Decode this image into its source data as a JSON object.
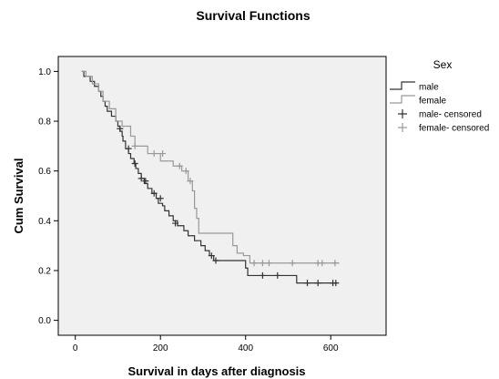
{
  "chart_data": {
    "type": "line",
    "title": "Survival Functions",
    "xlabel": "Survival in days after diagnosis",
    "ylabel": "Cum Survival",
    "xlim": [
      -40,
      730
    ],
    "ylim": [
      -0.06,
      1.06
    ],
    "x_ticks": [
      "0",
      "200",
      "400",
      "600"
    ],
    "x_tick_values": [
      0,
      200,
      400,
      600
    ],
    "y_ticks": [
      "0.0",
      "0.2",
      "0.4",
      "0.6",
      "0.8",
      "1.0"
    ],
    "y_tick_values": [
      0,
      0.2,
      0.4,
      0.6,
      0.8,
      1.0
    ],
    "grid": false,
    "legend": {
      "title": "Sex",
      "placement": "right",
      "entries": [
        "male",
        "female",
        "male- censored",
        "female- censored"
      ]
    },
    "series": [
      {
        "name": "male",
        "color": "#333333",
        "points": [
          [
            15,
            1.0
          ],
          [
            20,
            0.98
          ],
          [
            35,
            0.96
          ],
          [
            45,
            0.94
          ],
          [
            55,
            0.92
          ],
          [
            60,
            0.9
          ],
          [
            65,
            0.88
          ],
          [
            70,
            0.86
          ],
          [
            75,
            0.84
          ],
          [
            85,
            0.82
          ],
          [
            95,
            0.8
          ],
          [
            100,
            0.78
          ],
          [
            105,
            0.76
          ],
          [
            110,
            0.74
          ],
          [
            112,
            0.72
          ],
          [
            118,
            0.69
          ],
          [
            125,
            0.67
          ],
          [
            130,
            0.65
          ],
          [
            138,
            0.63
          ],
          [
            142,
            0.61
          ],
          [
            148,
            0.59
          ],
          [
            155,
            0.57
          ],
          [
            162,
            0.55
          ],
          [
            170,
            0.53
          ],
          [
            180,
            0.51
          ],
          [
            190,
            0.49
          ],
          [
            195,
            0.47
          ],
          [
            205,
            0.46
          ],
          [
            210,
            0.44
          ],
          [
            220,
            0.42
          ],
          [
            230,
            0.4
          ],
          [
            240,
            0.38
          ],
          [
            255,
            0.36
          ],
          [
            265,
            0.34
          ],
          [
            280,
            0.32
          ],
          [
            295,
            0.3
          ],
          [
            305,
            0.28
          ],
          [
            315,
            0.26
          ],
          [
            325,
            0.24
          ],
          [
            400,
            0.21
          ],
          [
            405,
            0.18
          ],
          [
            520,
            0.15
          ],
          [
            615,
            0.15
          ]
        ],
        "censored": [
          [
            105,
            0.77
          ],
          [
            125,
            0.69
          ],
          [
            140,
            0.63
          ],
          [
            155,
            0.57
          ],
          [
            165,
            0.56
          ],
          [
            185,
            0.51
          ],
          [
            200,
            0.49
          ],
          [
            235,
            0.39
          ],
          [
            320,
            0.26
          ],
          [
            330,
            0.24
          ],
          [
            440,
            0.18
          ],
          [
            475,
            0.18
          ],
          [
            545,
            0.15
          ],
          [
            570,
            0.15
          ],
          [
            605,
            0.15
          ],
          [
            612,
            0.15
          ]
        ]
      },
      {
        "name": "female",
        "color": "#999999",
        "points": [
          [
            15,
            1.0
          ],
          [
            25,
            0.98
          ],
          [
            40,
            0.95
          ],
          [
            55,
            0.92
          ],
          [
            65,
            0.88
          ],
          [
            80,
            0.85
          ],
          [
            95,
            0.8
          ],
          [
            110,
            0.78
          ],
          [
            130,
            0.74
          ],
          [
            140,
            0.7
          ],
          [
            170,
            0.67
          ],
          [
            200,
            0.64
          ],
          [
            230,
            0.62
          ],
          [
            250,
            0.6
          ],
          [
            265,
            0.56
          ],
          [
            275,
            0.52
          ],
          [
            280,
            0.45
          ],
          [
            285,
            0.41
          ],
          [
            290,
            0.35
          ],
          [
            370,
            0.3
          ],
          [
            380,
            0.27
          ],
          [
            395,
            0.26
          ],
          [
            410,
            0.23
          ],
          [
            620,
            0.23
          ]
        ],
        "censored": [
          [
            140,
            0.7
          ],
          [
            185,
            0.67
          ],
          [
            205,
            0.67
          ],
          [
            245,
            0.62
          ],
          [
            260,
            0.6
          ],
          [
            270,
            0.56
          ],
          [
            420,
            0.23
          ],
          [
            440,
            0.23
          ],
          [
            455,
            0.23
          ],
          [
            510,
            0.23
          ],
          [
            570,
            0.23
          ],
          [
            580,
            0.23
          ],
          [
            610,
            0.23
          ]
        ]
      }
    ]
  }
}
